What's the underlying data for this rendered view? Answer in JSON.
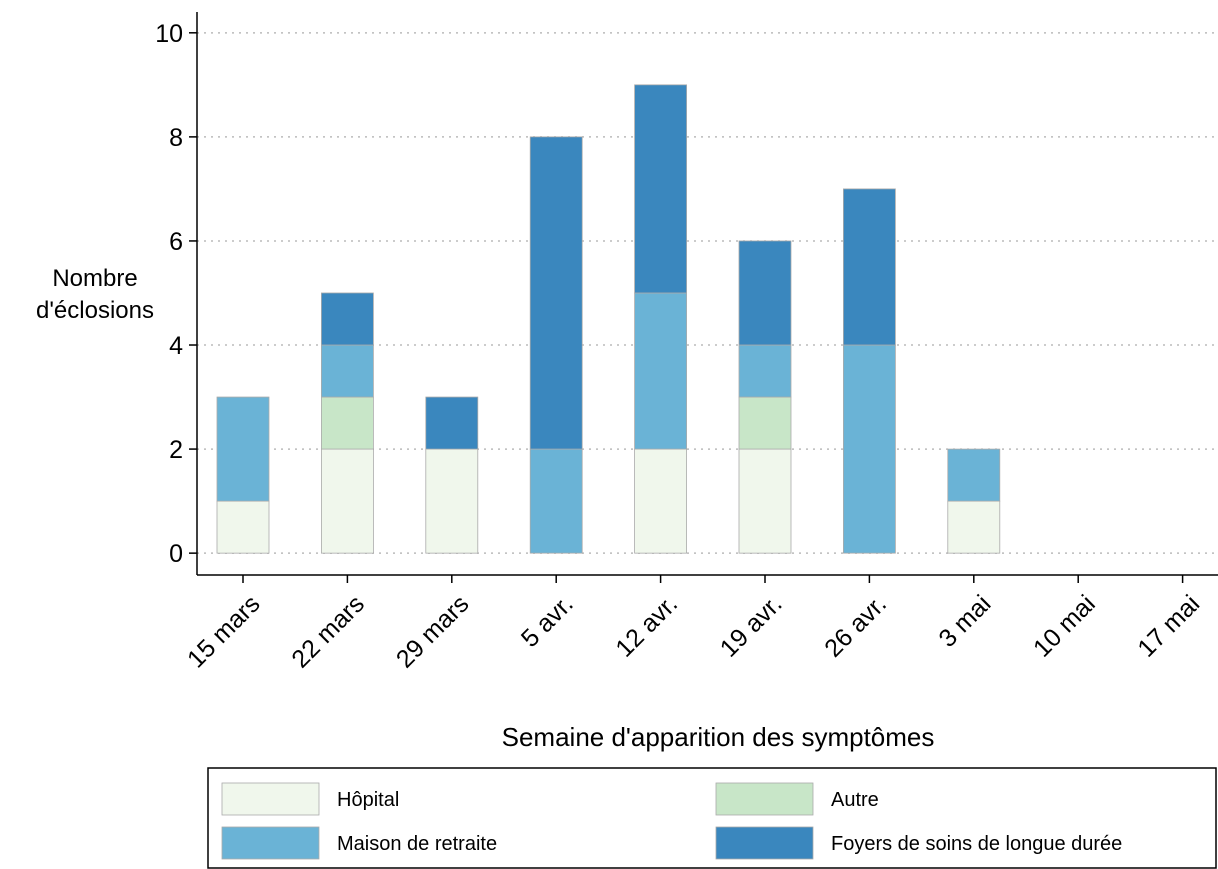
{
  "chart_data": {
    "type": "bar",
    "stacked": true,
    "x_label": "Semaine d'apparition des symptômes",
    "y_label": [
      "Nombre",
      "d'éclosions"
    ],
    "categories": [
      "15 mars",
      "22 mars",
      "29 mars",
      "5 avr.",
      "12 avr.",
      "19 avr.",
      "26 avr.",
      "3 mai",
      "10 mai",
      "17 mai"
    ],
    "series": [
      {
        "name": "Hôpital",
        "color": "#f0f7ec",
        "values": [
          1,
          2,
          2,
          0,
          2,
          2,
          0,
          1,
          0,
          0
        ]
      },
      {
        "name": "Autre",
        "color": "#c8e6c8",
        "values": [
          0,
          1,
          0,
          0,
          0,
          1,
          0,
          0,
          0,
          0
        ]
      },
      {
        "name": "Maison de retraite",
        "color": "#6ab3d6",
        "values": [
          2,
          1,
          0,
          2,
          3,
          1,
          4,
          1,
          0,
          0
        ]
      },
      {
        "name": "Foyers de soins de longue durée",
        "color": "#3a87be",
        "values": [
          0,
          1,
          1,
          6,
          4,
          2,
          3,
          0,
          0,
          0
        ]
      }
    ],
    "ylim": [
      -0.42,
      10.4
    ],
    "yticks": [
      0,
      2,
      4,
      6,
      8,
      10
    ],
    "grid": true
  }
}
